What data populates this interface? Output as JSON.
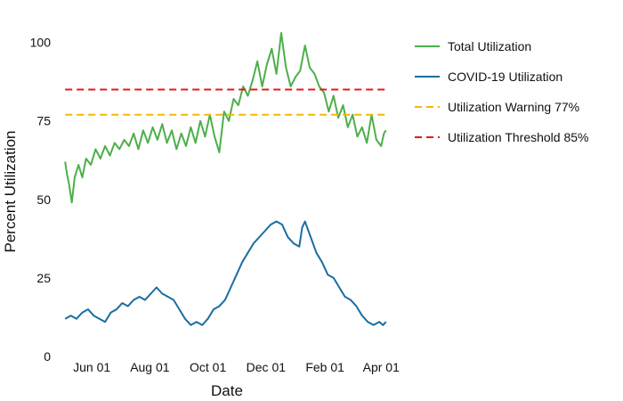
{
  "chart_data": {
    "type": "line",
    "title": "",
    "xlabel": "Date",
    "ylabel": "Percent Utilization",
    "xlim": [
      "2020-05-01",
      "2021-04-12"
    ],
    "ylim": [
      0,
      105
    ],
    "grid": false,
    "legend_position": "right",
    "x_ticks": [
      {
        "date": "2020-06-01",
        "label": "Jun 01"
      },
      {
        "date": "2020-08-01",
        "label": "Aug 01"
      },
      {
        "date": "2020-10-01",
        "label": "Oct 01"
      },
      {
        "date": "2020-12-01",
        "label": "Dec 01"
      },
      {
        "date": "2021-02-01",
        "label": "Feb 01"
      },
      {
        "date": "2021-04-01",
        "label": "Apr 01"
      }
    ],
    "y_ticks": [
      {
        "value": 0,
        "label": "0"
      },
      {
        "value": 25,
        "label": "25"
      },
      {
        "value": 50,
        "label": "50"
      },
      {
        "value": 75,
        "label": "75"
      },
      {
        "value": 100,
        "label": "100"
      }
    ],
    "series": [
      {
        "name": "Total Utilization",
        "color": "#4daf4a",
        "style": "solid",
        "points": [
          [
            "2020-05-04",
            62
          ],
          [
            "2020-05-06",
            58
          ],
          [
            "2020-05-08",
            55
          ],
          [
            "2020-05-11",
            49
          ],
          [
            "2020-05-14",
            57
          ],
          [
            "2020-05-18",
            61
          ],
          [
            "2020-05-22",
            57
          ],
          [
            "2020-05-26",
            63
          ],
          [
            "2020-05-31",
            61
          ],
          [
            "2020-06-05",
            66
          ],
          [
            "2020-06-10",
            63
          ],
          [
            "2020-06-15",
            67
          ],
          [
            "2020-06-20",
            64
          ],
          [
            "2020-06-25",
            68
          ],
          [
            "2020-06-30",
            66
          ],
          [
            "2020-07-05",
            69
          ],
          [
            "2020-07-10",
            67
          ],
          [
            "2020-07-15",
            71
          ],
          [
            "2020-07-20",
            66
          ],
          [
            "2020-07-25",
            72
          ],
          [
            "2020-07-30",
            68
          ],
          [
            "2020-08-04",
            73
          ],
          [
            "2020-08-09",
            69
          ],
          [
            "2020-08-14",
            74
          ],
          [
            "2020-08-19",
            68
          ],
          [
            "2020-08-24",
            72
          ],
          [
            "2020-08-29",
            66
          ],
          [
            "2020-09-03",
            71
          ],
          [
            "2020-09-08",
            67
          ],
          [
            "2020-09-13",
            73
          ],
          [
            "2020-09-18",
            68
          ],
          [
            "2020-09-23",
            75
          ],
          [
            "2020-09-28",
            70
          ],
          [
            "2020-10-03",
            77
          ],
          [
            "2020-10-08",
            70
          ],
          [
            "2020-10-13",
            65
          ],
          [
            "2020-10-18",
            78
          ],
          [
            "2020-10-23",
            75
          ],
          [
            "2020-10-28",
            82
          ],
          [
            "2020-11-02",
            80
          ],
          [
            "2020-11-07",
            86
          ],
          [
            "2020-11-12",
            83
          ],
          [
            "2020-11-17",
            88
          ],
          [
            "2020-11-22",
            94
          ],
          [
            "2020-11-27",
            86
          ],
          [
            "2020-12-02",
            93
          ],
          [
            "2020-12-07",
            98
          ],
          [
            "2020-12-12",
            90
          ],
          [
            "2020-12-17",
            103
          ],
          [
            "2020-12-22",
            92
          ],
          [
            "2020-12-27",
            86
          ],
          [
            "2021-01-01",
            89
          ],
          [
            "2021-01-06",
            91
          ],
          [
            "2021-01-11",
            99
          ],
          [
            "2021-01-16",
            92
          ],
          [
            "2021-01-21",
            90
          ],
          [
            "2021-01-26",
            86
          ],
          [
            "2021-01-31",
            84
          ],
          [
            "2021-02-05",
            78
          ],
          [
            "2021-02-10",
            83
          ],
          [
            "2021-02-15",
            76
          ],
          [
            "2021-02-20",
            80
          ],
          [
            "2021-02-25",
            73
          ],
          [
            "2021-03-02",
            77
          ],
          [
            "2021-03-07",
            70
          ],
          [
            "2021-03-12",
            73
          ],
          [
            "2021-03-17",
            68
          ],
          [
            "2021-03-22",
            77
          ],
          [
            "2021-03-27",
            69
          ],
          [
            "2021-04-01",
            67
          ],
          [
            "2021-04-04",
            71
          ],
          [
            "2021-04-06",
            72
          ]
        ]
      },
      {
        "name": "COVID-19 Utilization",
        "color": "#1a6ea0",
        "style": "solid",
        "points": [
          [
            "2020-05-04",
            12
          ],
          [
            "2020-05-10",
            13
          ],
          [
            "2020-05-16",
            12
          ],
          [
            "2020-05-22",
            14
          ],
          [
            "2020-05-28",
            15
          ],
          [
            "2020-06-03",
            13
          ],
          [
            "2020-06-09",
            12
          ],
          [
            "2020-06-15",
            11
          ],
          [
            "2020-06-21",
            14
          ],
          [
            "2020-06-27",
            15
          ],
          [
            "2020-07-03",
            17
          ],
          [
            "2020-07-09",
            16
          ],
          [
            "2020-07-15",
            18
          ],
          [
            "2020-07-21",
            19
          ],
          [
            "2020-07-27",
            18
          ],
          [
            "2020-08-02",
            20
          ],
          [
            "2020-08-08",
            22
          ],
          [
            "2020-08-14",
            20
          ],
          [
            "2020-08-20",
            19
          ],
          [
            "2020-08-26",
            18
          ],
          [
            "2020-09-01",
            15
          ],
          [
            "2020-09-07",
            12
          ],
          [
            "2020-09-13",
            10
          ],
          [
            "2020-09-19",
            11
          ],
          [
            "2020-09-25",
            10
          ],
          [
            "2020-10-01",
            12
          ],
          [
            "2020-10-07",
            15
          ],
          [
            "2020-10-13",
            16
          ],
          [
            "2020-10-19",
            18
          ],
          [
            "2020-10-25",
            22
          ],
          [
            "2020-10-31",
            26
          ],
          [
            "2020-11-06",
            30
          ],
          [
            "2020-11-12",
            33
          ],
          [
            "2020-11-18",
            36
          ],
          [
            "2020-11-24",
            38
          ],
          [
            "2020-11-30",
            40
          ],
          [
            "2020-12-06",
            42
          ],
          [
            "2020-12-12",
            43
          ],
          [
            "2020-12-18",
            42
          ],
          [
            "2020-12-24",
            38
          ],
          [
            "2020-12-30",
            36
          ],
          [
            "2021-01-05",
            35
          ],
          [
            "2021-01-08",
            41
          ],
          [
            "2021-01-11",
            43
          ],
          [
            "2021-01-17",
            38
          ],
          [
            "2021-01-23",
            33
          ],
          [
            "2021-01-29",
            30
          ],
          [
            "2021-02-04",
            26
          ],
          [
            "2021-02-10",
            25
          ],
          [
            "2021-02-16",
            22
          ],
          [
            "2021-02-22",
            19
          ],
          [
            "2021-02-28",
            18
          ],
          [
            "2021-03-06",
            16
          ],
          [
            "2021-03-12",
            13
          ],
          [
            "2021-03-18",
            11
          ],
          [
            "2021-03-24",
            10
          ],
          [
            "2021-03-30",
            11
          ],
          [
            "2021-04-03",
            10
          ],
          [
            "2021-04-06",
            11
          ]
        ]
      },
      {
        "name": "Utilization Warning 77%",
        "color": "#f5b800",
        "style": "dashed",
        "points": [
          [
            "2020-05-04",
            77
          ],
          [
            "2021-04-06",
            77
          ]
        ]
      },
      {
        "name": "Utilization Threshold 85%",
        "color": "#e41a1c",
        "style": "dashed",
        "points": [
          [
            "2020-05-04",
            85
          ],
          [
            "2021-04-06",
            85
          ]
        ]
      }
    ]
  }
}
